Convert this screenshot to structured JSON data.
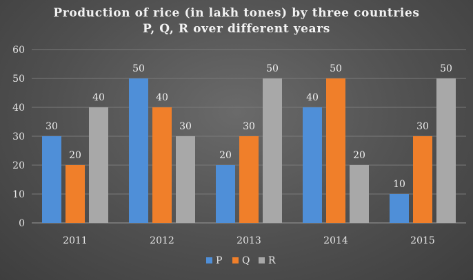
{
  "chart_data": {
    "type": "bar",
    "title_lines": [
      "Production of rice (in lakh tones) by three countries",
      "P, Q, R over different years"
    ],
    "xlabel": "",
    "ylabel": "",
    "categories": [
      "2011",
      "2012",
      "2013",
      "2014",
      "2015"
    ],
    "series": [
      {
        "name": "P",
        "values": [
          30,
          50,
          20,
          40,
          10
        ],
        "color": "#4f8fd8"
      },
      {
        "name": "Q",
        "values": [
          20,
          40,
          30,
          50,
          30
        ],
        "color": "#f07f2a"
      },
      {
        "name": "R",
        "values": [
          40,
          30,
          50,
          20,
          50
        ],
        "color": "#a8a8a8"
      }
    ],
    "ylim": [
      0,
      60
    ],
    "yticks": [
      0,
      10,
      20,
      30,
      40,
      50,
      60
    ],
    "grid": true,
    "data_labels": true,
    "legend_position": "bottom"
  },
  "colors": {
    "text": "#f2f2f2",
    "grid": "#7a7a7a",
    "axis": "#9a9a9a"
  }
}
